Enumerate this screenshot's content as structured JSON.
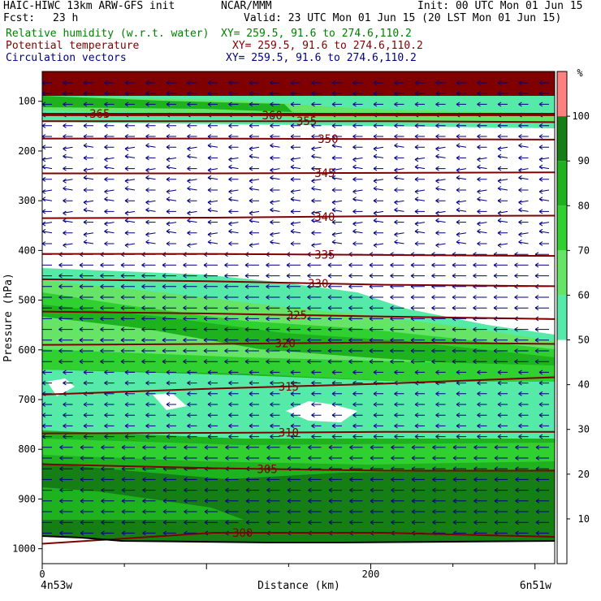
{
  "header": {
    "model": "HAIC-HIWC 13km ARW-GFS init",
    "org": "NCAR/MMM",
    "init": "Init: 00 UTC Mon 01 Jun 15",
    "fcst_label": "Fcst:",
    "fcst_value": "23 h",
    "valid": "Valid: 23 UTC Mon 01 Jun 15 (20 LST Mon 01 Jun 15)",
    "fields": [
      {
        "name": "Relative humidity (w.r.t. water)",
        "xy": "XY= 259.5, 91.6 to 274.6,110.2",
        "color": "#008000"
      },
      {
        "name": "Potential temperature",
        "xy": "XY= 259.5, 91.6 to 274.6,110.2",
        "color": "#800000"
      },
      {
        "name": "Circulation vectors",
        "xy": "XY= 259.5, 91.6 to 274.6,110.2",
        "color": "#000080"
      }
    ]
  },
  "colors": {
    "rh_50": "#56eaa8",
    "rh_60": "#66e466",
    "rh_70": "#2fd02f",
    "rh_80": "#1eb31e",
    "rh_90": "#157f15",
    "rh_100": "#ff8080",
    "theta": "#800000",
    "vectors": "#000080",
    "terrain": "#000000"
  },
  "chart_data": {
    "type": "cross-section",
    "title": "",
    "xlabel": "Distance (km)",
    "ylabel": "Pressure (hPa)",
    "x_ticks": [
      0,
      200
    ],
    "x_range": [
      0,
      312
    ],
    "y_ticks": [
      100,
      200,
      300,
      400,
      500,
      600,
      700,
      800,
      900,
      1000
    ],
    "y_range": [
      1030,
      40
    ],
    "endpoint_left": "4n53w",
    "endpoint_right": "6n51w",
    "colorbar_unit": "%",
    "colorbar_levels": [
      10,
      20,
      30,
      40,
      50,
      60,
      70,
      80,
      90,
      100
    ],
    "isentropes": [
      {
        "label": "365",
        "label_x": 35,
        "p": [
          125,
          125,
          125,
          125
        ]
      },
      {
        "label": "360",
        "label_x": 140,
        "p": [
          128,
          128,
          128,
          128
        ]
      },
      {
        "label": "355",
        "label_x": 161,
        "p": [
          140,
          140,
          140,
          142
        ]
      },
      {
        "label": "350",
        "label_x": 174,
        "p": [
          175,
          175,
          176,
          177
        ]
      },
      {
        "label": "345",
        "label_x": 172,
        "p": [
          245,
          245,
          244,
          243
        ]
      },
      {
        "label": "340",
        "label_x": 172,
        "p": [
          335,
          334,
          331,
          330
        ]
      },
      {
        "label": "335",
        "label_x": 172,
        "p": [
          407,
          407,
          409,
          411
        ]
      },
      {
        "label": "330",
        "label_x": 168,
        "p": [
          458,
          462,
          469,
          472
        ]
      },
      {
        "label": "325",
        "label_x": 155,
        "p": [
          523,
          527,
          533,
          538
        ]
      },
      {
        "label": "320",
        "label_x": 148,
        "p": [
          590,
          588,
          585,
          588
        ]
      },
      {
        "label": "315",
        "label_x": 150,
        "p": [
          690,
          678,
          668,
          655
        ]
      },
      {
        "label": "310",
        "label_x": 150,
        "p": [
          768,
          767,
          765,
          765
        ]
      },
      {
        "label": "305",
        "label_x": 137,
        "p": [
          830,
          838,
          843,
          843
        ]
      },
      {
        "label": "300",
        "label_x": 122,
        "p": [
          990,
          968,
          968,
          976
        ]
      }
    ],
    "rh_regions": [
      {
        "level": 90,
        "desc": "top saturated layer",
        "p_top": 40,
        "p_bottom": 110,
        "value": 100
      },
      {
        "level": 50,
        "desc": "upper moist band",
        "p_top": 110,
        "p_bottom": 155
      },
      {
        "level": 50,
        "desc": "mid-level moist layer top",
        "p_top": 470,
        "p_bottom": 600
      },
      {
        "level": 90,
        "desc": "boundary layer",
        "p_top": 830,
        "p_bottom": 1000
      }
    ],
    "vector_direction": "easterly"
  }
}
